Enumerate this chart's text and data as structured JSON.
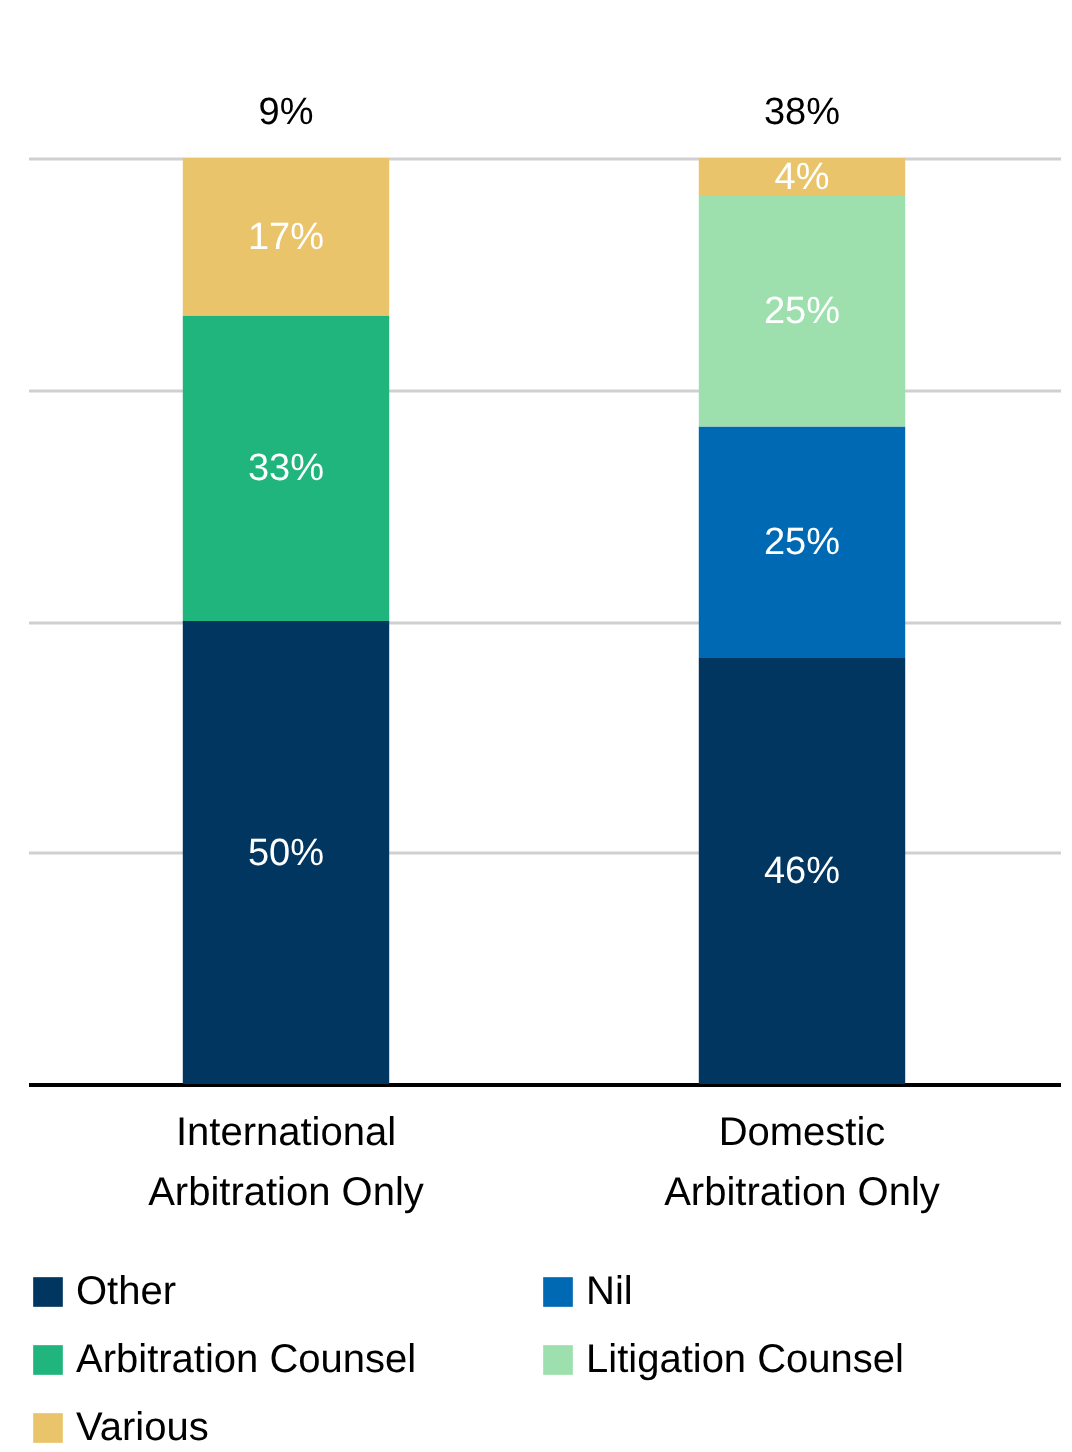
{
  "chart_data": {
    "type": "bar",
    "stacked": true,
    "categories": [
      "International Arbitration Only",
      "Domestic Arbitration Only"
    ],
    "series": [
      {
        "name": "Other",
        "color": "#003660",
        "values": [
          50,
          46
        ],
        "value_labels": [
          "50%",
          "46%"
        ]
      },
      {
        "name": "Nil",
        "color": "#0069b4",
        "values": [
          null,
          25
        ],
        "value_labels": [
          null,
          "25%"
        ]
      },
      {
        "name": "Arbitration Counsel",
        "color": "#1fb57d",
        "values": [
          33,
          null
        ],
        "value_labels": [
          "33%",
          null
        ]
      },
      {
        "name": "Litigation Counsel",
        "color": "#9de0ae",
        "values": [
          null,
          25
        ],
        "value_labels": [
          null,
          "25%"
        ]
      },
      {
        "name": "Various",
        "color": "#e9c46a",
        "values": [
          17,
          4
        ],
        "value_labels": [
          "17%",
          "4%"
        ]
      }
    ],
    "annotations": [
      {
        "text": "9%",
        "x": "International Arbitration Only",
        "y": 100
      },
      {
        "text": "38%",
        "x": "Domestic Arbitration Only",
        "y": 100
      }
    ],
    "ylim": [
      0,
      100
    ],
    "yticks": [
      {
        "value": 0,
        "label": null
      },
      {
        "value": 25,
        "label": null
      },
      {
        "value": 50,
        "label": null
      },
      {
        "value": 75,
        "label": null
      },
      {
        "value": 100,
        "label": null
      }
    ],
    "grid": "y",
    "tick_labels": "x",
    "legend": "bottom"
  }
}
